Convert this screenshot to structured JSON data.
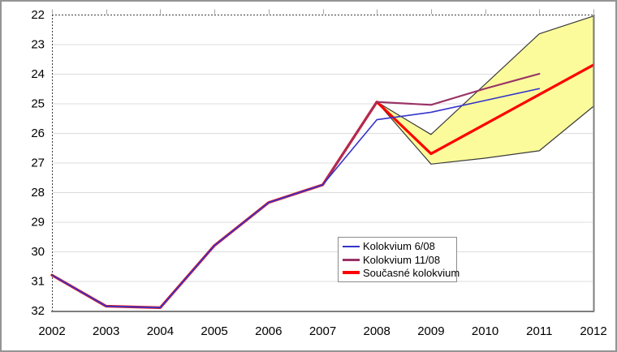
{
  "chart_data": {
    "type": "line",
    "title": "",
    "xlabel": "",
    "ylabel": "",
    "xlim": [
      2002,
      2012
    ],
    "ylim": [
      22,
      32
    ],
    "y_axis_inverted": true,
    "grid": "horizontal",
    "x_ticks": [
      "2002",
      "2003",
      "2004",
      "2005",
      "2006",
      "2007",
      "2008",
      "2009",
      "2010",
      "2011",
      "2012"
    ],
    "y_ticks": [
      "22",
      "23",
      "24",
      "25",
      "26",
      "27",
      "28",
      "29",
      "30",
      "31",
      "32"
    ],
    "legend_position": "inside-bottom-center",
    "series": [
      {
        "name": "Kolokvium 6/08",
        "color": "#3333CC",
        "width": 1.6,
        "x": [
          2002,
          2003,
          2004,
          2005,
          2006,
          2007,
          2008,
          2009,
          2010,
          2011
        ],
        "values": [
          30.8,
          31.85,
          31.9,
          29.8,
          28.35,
          27.75,
          25.55,
          25.3,
          24.9,
          24.5
        ]
      },
      {
        "name": "Kolokvium 11/08",
        "color": "#993366",
        "width": 2.2,
        "x": [
          2002,
          2003,
          2004,
          2005,
          2006,
          2007,
          2008,
          2009,
          2010,
          2011
        ],
        "values": [
          30.8,
          31.85,
          31.9,
          29.8,
          28.35,
          27.75,
          24.95,
          25.05,
          24.5,
          24.0
        ]
      },
      {
        "name": "Současné kolokvium",
        "color": "#FF0000",
        "width": 3.2,
        "x": [
          2002,
          2003,
          2004,
          2005,
          2006,
          2007,
          2008,
          2009,
          2010,
          2011,
          2012
        ],
        "values": [
          30.8,
          31.85,
          31.9,
          29.8,
          28.35,
          27.75,
          24.95,
          26.7,
          25.7,
          24.7,
          23.7
        ]
      }
    ],
    "band": {
      "name": "uncertainty-band",
      "fill": "#FBFB9B",
      "border": "#3A3A3A",
      "x": [
        2008,
        2009,
        2010,
        2011,
        2012
      ],
      "upper": [
        24.95,
        26.05,
        24.35,
        22.65,
        22.05
      ],
      "lower": [
        24.95,
        27.05,
        26.85,
        26.6,
        25.1
      ]
    }
  },
  "legend": {
    "items": [
      {
        "label": "Kolokvium 6/08",
        "color": "#3333CC",
        "swatch_height": 2
      },
      {
        "label": "Kolokvium 11/08",
        "color": "#993366",
        "swatch_height": 3
      },
      {
        "label": "Současné kolokvium",
        "color": "#FF0000",
        "swatch_height": 4
      }
    ]
  },
  "colors": {
    "figure_border": "#949494",
    "gridline": "#DCDCDC",
    "axis_solid": "#7D7D7D",
    "axis_dotted": "#3C3C3C",
    "top_ticks": "#A6A6A6",
    "label_text": "#000000",
    "background": "#FFFFFF"
  }
}
